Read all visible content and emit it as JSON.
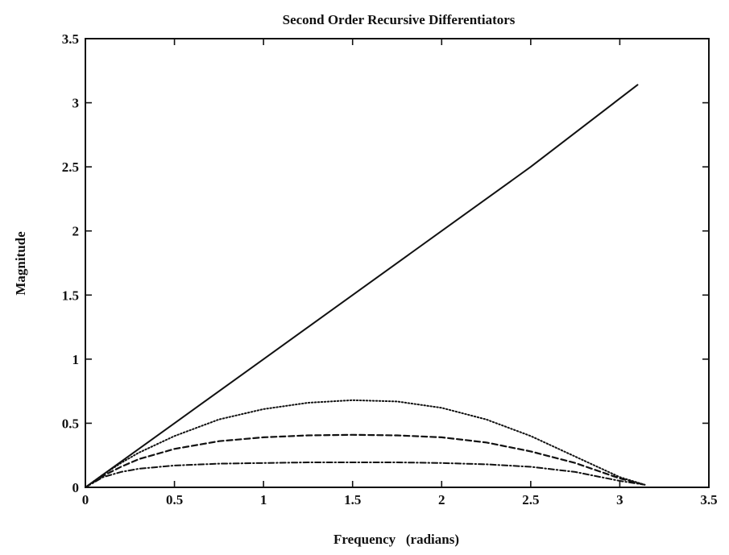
{
  "chart_data": {
    "type": "line",
    "title": "Second Order Recursive Differentiators",
    "xlabel": "Frequency   (radians)",
    "ylabel": "Magnitude",
    "xlim": [
      0,
      3.5
    ],
    "ylim": [
      0,
      3.5
    ],
    "xticks": [
      "0",
      "0.5",
      "1",
      "1.5",
      "2",
      "2.5",
      "3",
      "3.5"
    ],
    "yticks": [
      "0",
      "0.5",
      "1",
      "1.5",
      "2",
      "2.5",
      "3",
      "3.5"
    ],
    "grid": false,
    "series": [
      {
        "style": "solid",
        "x": [
          0,
          0.5,
          1.0,
          1.5,
          2.0,
          2.5,
          3.1
        ],
        "y": [
          0,
          0.5,
          1.0,
          1.5,
          2.0,
          2.5,
          3.14
        ]
      },
      {
        "style": "dotted",
        "x": [
          0,
          0.1,
          0.2,
          0.3,
          0.5,
          0.75,
          1.0,
          1.25,
          1.5,
          1.75,
          2.0,
          2.25,
          2.5,
          2.75,
          3.0,
          3.14
        ],
        "y": [
          0,
          0.1,
          0.19,
          0.27,
          0.4,
          0.53,
          0.61,
          0.66,
          0.68,
          0.67,
          0.62,
          0.53,
          0.4,
          0.24,
          0.08,
          0.02
        ]
      },
      {
        "style": "dashed",
        "x": [
          0,
          0.1,
          0.2,
          0.3,
          0.5,
          0.75,
          1.0,
          1.25,
          1.5,
          1.75,
          2.0,
          2.25,
          2.5,
          2.75,
          3.0,
          3.14
        ],
        "y": [
          0,
          0.09,
          0.16,
          0.22,
          0.3,
          0.36,
          0.39,
          0.405,
          0.41,
          0.405,
          0.39,
          0.35,
          0.28,
          0.19,
          0.07,
          0.02
        ]
      },
      {
        "style": "dashdot",
        "x": [
          0,
          0.1,
          0.2,
          0.3,
          0.5,
          0.75,
          1.0,
          1.25,
          1.5,
          1.75,
          2.0,
          2.25,
          2.5,
          2.75,
          3.0,
          3.14
        ],
        "y": [
          0,
          0.08,
          0.12,
          0.145,
          0.17,
          0.185,
          0.19,
          0.195,
          0.195,
          0.195,
          0.19,
          0.18,
          0.16,
          0.12,
          0.05,
          0.02
        ]
      }
    ]
  }
}
